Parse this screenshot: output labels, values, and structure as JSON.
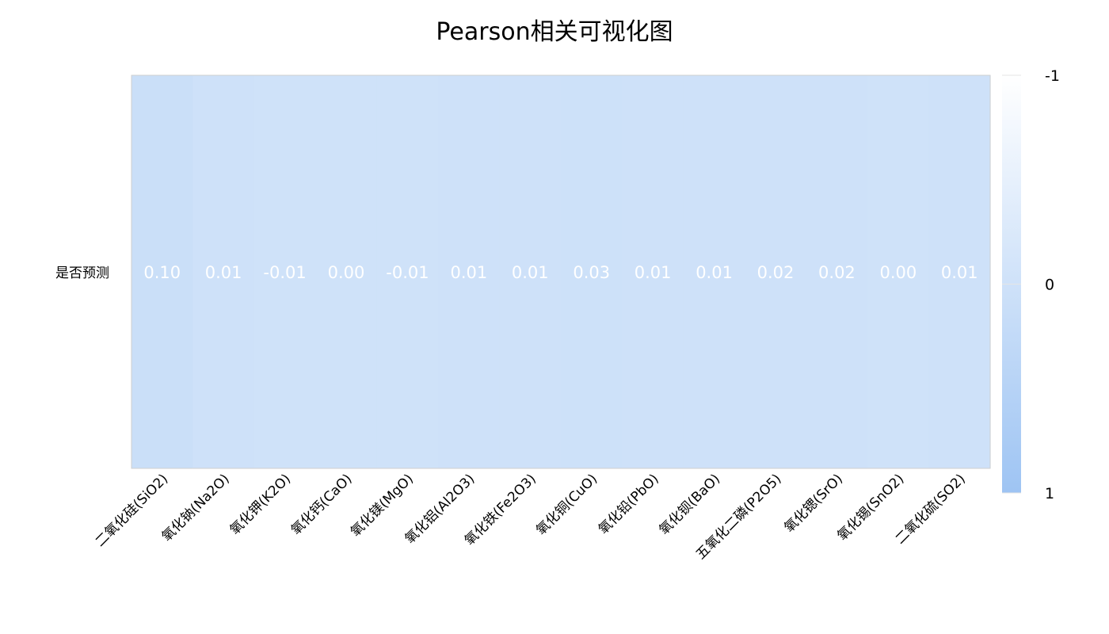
{
  "chart_data": {
    "type": "heatmap",
    "title": "Pearson相关可视化图",
    "rows": [
      "是否预测"
    ],
    "columns": [
      "二氧化硅(SiO2)",
      "氧化钠(Na2O)",
      "氧化钾(K2O)",
      "氧化钙(CaO)",
      "氧化镁(MgO)",
      "氧化铝(Al2O3)",
      "氧化铁(Fe2O3)",
      "氧化铜(CuO)",
      "氧化铅(PbO)",
      "氧化钡(BaO)",
      "五氧化二磷(P2O5)",
      "氧化锶(SrO)",
      "氧化锡(SnO2)",
      "二氧化硫(SO2)"
    ],
    "values": [
      [
        0.1,
        0.01,
        -0.01,
        0.0,
        -0.01,
        0.01,
        0.01,
        0.03,
        0.01,
        0.01,
        0.02,
        0.02,
        0.0,
        0.01
      ]
    ],
    "value_labels": [
      [
        "0.10",
        "0.01",
        "-0.01",
        "0.00",
        "-0.01",
        "0.01",
        "0.01",
        "0.03",
        "0.01",
        "0.01",
        "0.02",
        "0.02",
        "0.00",
        "0.01"
      ]
    ],
    "colorbar": {
      "min": -1,
      "max": 1,
      "ticks": [
        -1,
        0,
        1
      ],
      "tick_labels": [
        "-1",
        "0",
        "1"
      ],
      "min_color": "#ffffff",
      "max_color": "#9ec4f3"
    }
  }
}
